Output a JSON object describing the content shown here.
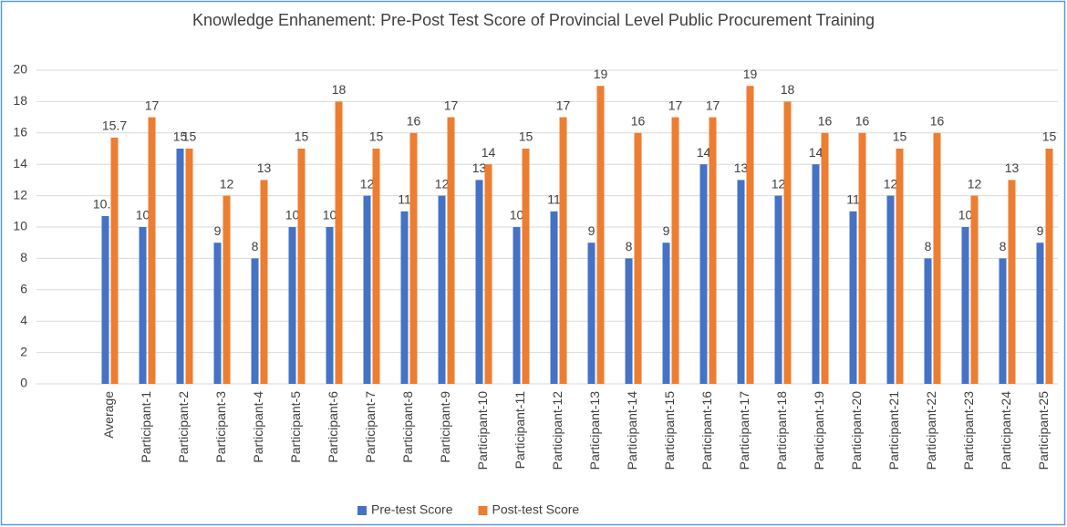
{
  "chart_data": {
    "type": "bar",
    "title": "Knowledge Enhanement: Pre-Post Test Score of Provincial Level Public Procurement Training",
    "categories": [
      "Average",
      "Participant-1",
      "Participant-2",
      "Participant-3",
      "Participant-4",
      "Participant-5",
      "Participant-6",
      "Participant-7",
      "Participant-8",
      "Participant-9",
      "Participant-10",
      "Participant-11",
      "Participant-12",
      "Participant-13",
      "Participant-14",
      "Participant-15",
      "Participant-16",
      "Participant-17",
      "Participant-18",
      "Participant-19",
      "Participant-20",
      "Participant-21",
      "Participant-22",
      "Participant-23",
      "Participant-24",
      "Participant-25"
    ],
    "series": [
      {
        "name": "Pre-test Score",
        "color": "#4472c4",
        "values": [
          10.7,
          10,
          15,
          9,
          8,
          10,
          10,
          12,
          11,
          12,
          13,
          10,
          11,
          9,
          8,
          9,
          14,
          13,
          12,
          14,
          11,
          12,
          8,
          10,
          8,
          9
        ]
      },
      {
        "name": "Post-test Score",
        "color": "#ed7d31",
        "values": [
          15.7,
          17,
          15,
          12,
          13,
          15,
          18,
          15,
          16,
          17,
          14,
          15,
          17,
          19,
          16,
          17,
          17,
          19,
          18,
          16,
          16,
          15,
          16,
          12,
          13,
          15
        ]
      }
    ],
    "ylim": [
      0,
      20
    ],
    "yticks": [
      0,
      2,
      4,
      6,
      8,
      10,
      12,
      14,
      16,
      18,
      20
    ],
    "grid": true,
    "legend": "bottom"
  }
}
